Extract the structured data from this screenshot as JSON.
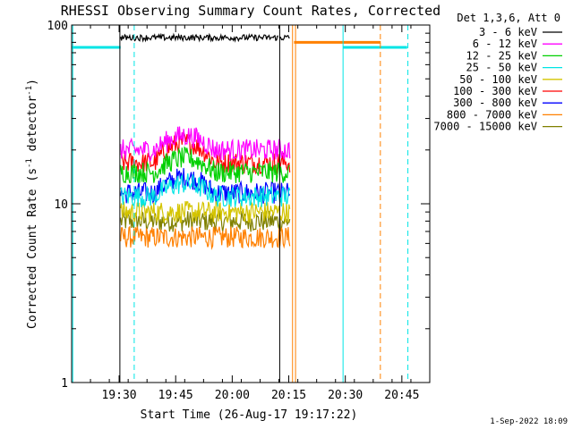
{
  "chart_data": {
    "type": "line",
    "title": "RHESSI Observing Summary Count Rates, Corrected",
    "xlabel": "Start Time (26-Aug-17 19:17:22)",
    "ylabel": "Corrected Count Rate (s",
    "ylabel_sup1": "-1",
    "ylabel_mid": " detector",
    "ylabel_sup2": "-1",
    "ylabel_end": ")",
    "y_scale": "log",
    "xlim_minutes_after_19_17_22": [
      0,
      95
    ],
    "ylim": [
      1,
      100
    ],
    "x_ticks": [
      "19:30",
      "19:45",
      "20:00",
      "20:15",
      "20:30",
      "20:45"
    ],
    "x_tick_minutes": [
      12.6,
      27.6,
      42.6,
      57.6,
      72.6,
      87.6
    ],
    "y_tick_labels": [
      "1",
      "10",
      "100"
    ],
    "y_tick_values": [
      1,
      10,
      100
    ],
    "legend_title": "Det 1,3,6, Att 0",
    "legend_position": "top-right",
    "series": [
      {
        "name": "3 - 6 keV",
        "color": "#000000",
        "base": 85.0,
        "segments": [
          [
            13,
            55
          ],
          [
            55,
            58
          ]
        ]
      },
      {
        "name": "6 - 12 keV",
        "color": "#ff00ff",
        "base": 20.0,
        "segments": [
          [
            13,
            58
          ]
        ],
        "peak": 24.0
      },
      {
        "name": "12 - 25 keV",
        "color": "#00d000",
        "base": 15.0,
        "segments": [
          [
            13,
            58
          ]
        ],
        "peak": 18.0
      },
      {
        "name": "25 - 50 keV",
        "color": "#00e5e5",
        "base": 11.0,
        "segments": [
          [
            13,
            58
          ]
        ],
        "peak": 13.0
      },
      {
        "name": "50 - 100 keV",
        "color": "#d4c400",
        "base": 9.0,
        "segments": [
          [
            13,
            58
          ]
        ]
      },
      {
        "name": "100 - 300 keV",
        "color": "#ff0000",
        "base": 17.0,
        "segments": [
          [
            13,
            58
          ]
        ],
        "peak": 22.0
      },
      {
        "name": "300 - 800 keV",
        "color": "#0000ff",
        "base": 11.5,
        "segments": [
          [
            13,
            58
          ]
        ],
        "peak": 14.0
      },
      {
        "name": "800 - 7000 keV",
        "color": "#ff8000",
        "base": 6.5,
        "segments": [
          [
            13,
            58
          ]
        ]
      },
      {
        "name": "7000 - 15000 keV",
        "color": "#808000",
        "base": 8.0,
        "segments": [
          [
            13,
            58
          ]
        ]
      }
    ],
    "cyan_baseline_level": 75,
    "cyan_baseline_segments": [
      [
        0,
        13
      ],
      [
        72,
        89
      ]
    ],
    "orange_baseline_level": 80,
    "orange_baseline_segments": [
      [
        59,
        82
      ]
    ],
    "solid_verticals": [
      {
        "x": 0.3,
        "color": "#00e5e5"
      },
      {
        "x": 12.8,
        "color": "#000000"
      },
      {
        "x": 55.2,
        "color": "#000000"
      },
      {
        "x": 58.6,
        "color": "#ff8000"
      },
      {
        "x": 59.4,
        "color": "#ff8000"
      },
      {
        "x": 72.0,
        "color": "#00e5e5"
      }
    ],
    "dashed_verticals": [
      {
        "x": 16.6,
        "color": "#00e5e5"
      },
      {
        "x": 81.9,
        "color": "#ff8000"
      },
      {
        "x": 89.2,
        "color": "#00e5e5"
      }
    ]
  },
  "footer_timestamp": "1-Sep-2022 18:09"
}
